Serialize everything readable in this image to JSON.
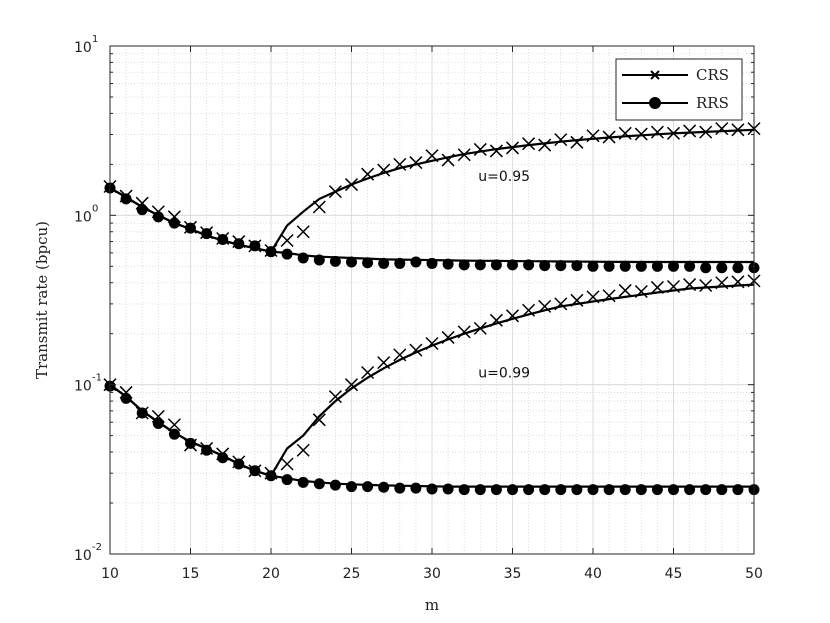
{
  "chart_data": {
    "type": "line",
    "title": "",
    "xlabel": "m",
    "ylabel": "Transmit rate (bpcu)",
    "xlim": [
      10,
      50
    ],
    "ylim": [
      0.01,
      10
    ],
    "yscale": "log",
    "grid": true,
    "legend_position": "top-right",
    "x_ticks": [
      "10",
      "15",
      "20",
      "25",
      "30",
      "35",
      "40",
      "45",
      "50"
    ],
    "y_ticks": [
      {
        "base": "10",
        "exp": "-2"
      },
      {
        "base": "10",
        "exp": "-1"
      },
      {
        "base": "10",
        "exp": "0"
      },
      {
        "base": "10",
        "exp": "1"
      }
    ],
    "legend": [
      {
        "label": "CRS",
        "marker": "x"
      },
      {
        "label": "RRS",
        "marker": "circle"
      }
    ],
    "annotations": [
      {
        "text": "u=0.95",
        "x": 33,
        "y": 1.6
      },
      {
        "text": "u=0.99",
        "x": 33,
        "y": 0.11
      }
    ],
    "groups": [
      {
        "annotation": "u=0.95",
        "crs_line": {
          "x": [
            10,
            11,
            12,
            13,
            14,
            15,
            16,
            17,
            18,
            19,
            20,
            21,
            22,
            23,
            24,
            25,
            26,
            27,
            28,
            29,
            30,
            31,
            32,
            33,
            34,
            35,
            36,
            37,
            38,
            39,
            40,
            41,
            42,
            43,
            44,
            45,
            46,
            47,
            48,
            49,
            50
          ],
          "y": [
            1.45,
            1.28,
            1.12,
            1.0,
            0.9,
            0.83,
            0.76,
            0.71,
            0.67,
            0.64,
            0.61,
            0.87,
            1.05,
            1.25,
            1.38,
            1.52,
            1.65,
            1.78,
            1.9,
            2.0,
            2.1,
            2.2,
            2.3,
            2.38,
            2.46,
            2.53,
            2.6,
            2.66,
            2.72,
            2.78,
            2.83,
            2.88,
            2.93,
            2.97,
            3.01,
            3.05,
            3.08,
            3.11,
            3.14,
            3.17,
            3.2
          ]
        },
        "crs_markers": {
          "x": [
            10,
            11,
            12,
            13,
            14,
            15,
            16,
            17,
            18,
            19,
            20,
            21,
            22,
            23,
            24,
            25,
            26,
            27,
            28,
            29,
            30,
            31,
            32,
            33,
            34,
            35,
            36,
            37,
            38,
            39,
            40,
            41,
            42,
            43,
            44,
            45,
            46,
            47,
            48,
            49,
            50
          ],
          "y": [
            1.48,
            1.3,
            1.18,
            1.05,
            0.98,
            0.85,
            0.79,
            0.73,
            0.7,
            0.66,
            0.62,
            0.71,
            0.8,
            1.12,
            1.38,
            1.52,
            1.75,
            1.85,
            2.0,
            2.05,
            2.25,
            2.12,
            2.28,
            2.45,
            2.4,
            2.5,
            2.65,
            2.6,
            2.8,
            2.7,
            2.95,
            2.9,
            3.05,
            3.02,
            3.1,
            3.05,
            3.15,
            3.1,
            3.25,
            3.2,
            3.25
          ]
        },
        "rrs_line": {
          "x": [
            10,
            11,
            12,
            13,
            14,
            15,
            16,
            17,
            18,
            19,
            20,
            21,
            22,
            23,
            24,
            25,
            26,
            27,
            28,
            29,
            30,
            31,
            32,
            33,
            34,
            35,
            36,
            37,
            38,
            39,
            40,
            41,
            42,
            43,
            44,
            45,
            46,
            47,
            48,
            49,
            50
          ],
          "y": [
            1.45,
            1.28,
            1.12,
            1.0,
            0.9,
            0.83,
            0.76,
            0.71,
            0.67,
            0.64,
            0.61,
            0.6,
            0.58,
            0.57,
            0.565,
            0.56,
            0.555,
            0.55,
            0.548,
            0.546,
            0.544,
            0.542,
            0.54,
            0.539,
            0.538,
            0.537,
            0.536,
            0.535,
            0.534,
            0.533,
            0.532,
            0.531,
            0.531,
            0.53,
            0.53,
            0.53,
            0.53,
            0.53,
            0.53,
            0.53,
            0.53
          ]
        },
        "rrs_markers": {
          "x": [
            10,
            11,
            12,
            13,
            14,
            15,
            16,
            17,
            18,
            19,
            20,
            21,
            22,
            23,
            24,
            25,
            26,
            27,
            28,
            29,
            30,
            31,
            32,
            33,
            34,
            35,
            36,
            37,
            38,
            39,
            40,
            41,
            42,
            43,
            44,
            45,
            46,
            47,
            48,
            49,
            50
          ],
          "y": [
            1.45,
            1.25,
            1.08,
            0.98,
            0.9,
            0.84,
            0.78,
            0.72,
            0.68,
            0.66,
            0.61,
            0.59,
            0.56,
            0.545,
            0.535,
            0.53,
            0.525,
            0.52,
            0.52,
            0.53,
            0.52,
            0.515,
            0.51,
            0.51,
            0.51,
            0.51,
            0.51,
            0.505,
            0.505,
            0.505,
            0.5,
            0.5,
            0.5,
            0.5,
            0.5,
            0.5,
            0.5,
            0.49,
            0.49,
            0.49,
            0.49
          ]
        }
      },
      {
        "annotation": "u=0.99",
        "crs_line": {
          "x": [
            10,
            11,
            12,
            13,
            14,
            15,
            16,
            17,
            18,
            19,
            20,
            21,
            22,
            23,
            24,
            25,
            26,
            27,
            28,
            29,
            30,
            31,
            32,
            33,
            34,
            35,
            36,
            37,
            38,
            39,
            40,
            41,
            42,
            43,
            44,
            45,
            46,
            47,
            48,
            49,
            50
          ],
          "y": [
            0.1,
            0.085,
            0.07,
            0.06,
            0.052,
            0.046,
            0.042,
            0.038,
            0.034,
            0.031,
            0.029,
            0.042,
            0.05,
            0.065,
            0.08,
            0.095,
            0.11,
            0.125,
            0.14,
            0.155,
            0.17,
            0.185,
            0.2,
            0.215,
            0.23,
            0.245,
            0.26,
            0.275,
            0.29,
            0.3,
            0.31,
            0.32,
            0.33,
            0.34,
            0.35,
            0.36,
            0.37,
            0.375,
            0.38,
            0.385,
            0.39
          ]
        },
        "crs_markers": {
          "x": [
            10,
            11,
            12,
            13,
            14,
            15,
            16,
            17,
            18,
            19,
            20,
            21,
            22,
            23,
            24,
            25,
            26,
            27,
            28,
            29,
            30,
            31,
            32,
            33,
            34,
            35,
            36,
            37,
            38,
            39,
            40,
            41,
            42,
            43,
            44,
            45,
            46,
            47,
            48,
            49,
            50
          ],
          "y": [
            0.1,
            0.09,
            0.068,
            0.065,
            0.058,
            0.044,
            0.042,
            0.039,
            0.035,
            0.031,
            0.03,
            0.034,
            0.041,
            0.062,
            0.085,
            0.1,
            0.118,
            0.135,
            0.15,
            0.16,
            0.175,
            0.19,
            0.205,
            0.215,
            0.24,
            0.255,
            0.275,
            0.29,
            0.3,
            0.315,
            0.33,
            0.335,
            0.36,
            0.355,
            0.375,
            0.38,
            0.39,
            0.385,
            0.4,
            0.405,
            0.41
          ]
        },
        "rrs_line": {
          "x": [
            10,
            11,
            12,
            13,
            14,
            15,
            16,
            17,
            18,
            19,
            20,
            21,
            22,
            23,
            24,
            25,
            26,
            27,
            28,
            29,
            30,
            31,
            32,
            33,
            34,
            35,
            36,
            37,
            38,
            39,
            40,
            41,
            42,
            43,
            44,
            45,
            46,
            47,
            48,
            49,
            50
          ],
          "y": [
            0.1,
            0.085,
            0.07,
            0.06,
            0.052,
            0.046,
            0.042,
            0.038,
            0.034,
            0.031,
            0.029,
            0.028,
            0.027,
            0.0265,
            0.026,
            0.0258,
            0.0256,
            0.0254,
            0.0253,
            0.0252,
            0.0251,
            0.025,
            0.025,
            0.025,
            0.025,
            0.025,
            0.025,
            0.025,
            0.025,
            0.025,
            0.025,
            0.025,
            0.025,
            0.025,
            0.025,
            0.025,
            0.025,
            0.025,
            0.025,
            0.025,
            0.025
          ]
        },
        "rrs_markers": {
          "x": [
            10,
            11,
            12,
            13,
            14,
            15,
            16,
            17,
            18,
            19,
            20,
            21,
            22,
            23,
            24,
            25,
            26,
            27,
            28,
            29,
            30,
            31,
            32,
            33,
            34,
            35,
            36,
            37,
            38,
            39,
            40,
            41,
            42,
            43,
            44,
            45,
            46,
            47,
            48,
            49,
            50
          ],
          "y": [
            0.098,
            0.083,
            0.068,
            0.059,
            0.051,
            0.045,
            0.041,
            0.037,
            0.034,
            0.031,
            0.029,
            0.0275,
            0.0265,
            0.026,
            0.0255,
            0.025,
            0.025,
            0.0248,
            0.0245,
            0.0245,
            0.0242,
            0.0242,
            0.024,
            0.024,
            0.024,
            0.024,
            0.024,
            0.024,
            0.024,
            0.024,
            0.024,
            0.024,
            0.024,
            0.024,
            0.024,
            0.024,
            0.024,
            0.024,
            0.024,
            0.024,
            0.024
          ]
        }
      }
    ]
  }
}
